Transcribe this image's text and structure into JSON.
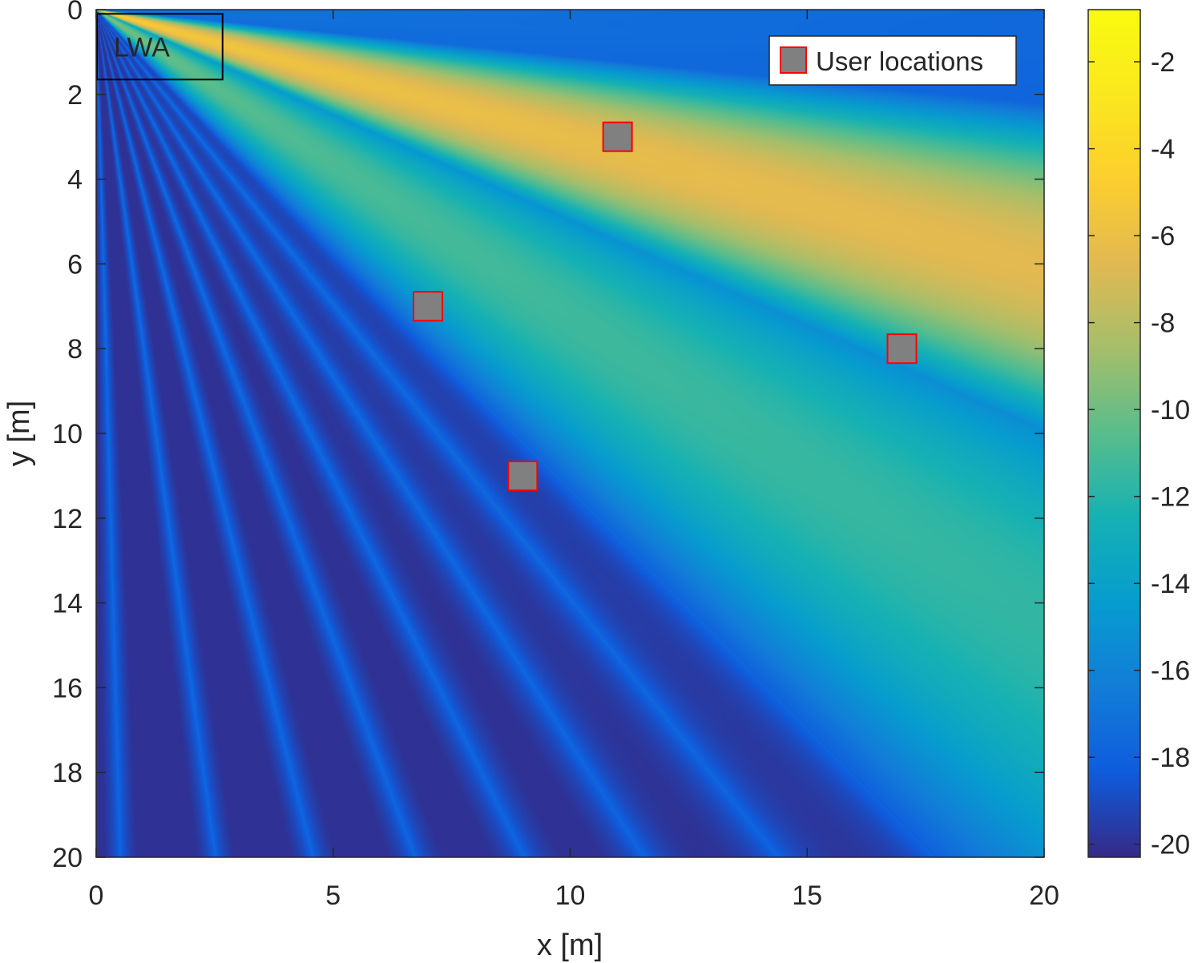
{
  "chart_data": {
    "type": "heatmap",
    "xlabel": "x [m]",
    "ylabel": "y [m]",
    "xlim": [
      0,
      20
    ],
    "ylim": [
      0,
      20
    ],
    "y_direction": "reversed",
    "xticks": [
      0,
      5,
      10,
      15,
      20
    ],
    "yticks": [
      0,
      2,
      4,
      6,
      8,
      10,
      12,
      14,
      16,
      18,
      20
    ],
    "colormap": "parula",
    "colorbar": {
      "clim": [
        -20.3,
        -0.8
      ],
      "ticks": [
        -2,
        -4,
        -6,
        -8,
        -10,
        -12,
        -14,
        -16,
        -18,
        -20
      ],
      "tick_labels": [
        "-2",
        "-4",
        "-6",
        "-8",
        "-10",
        "-12",
        "-14",
        "-16",
        "-18",
        "-20"
      ]
    },
    "field": {
      "source": [
        0,
        0
      ],
      "beams": [
        {
          "direction_deg": 17,
          "peak_level": -5,
          "width_deg": 4.5
        },
        {
          "direction_deg": 36,
          "peak_level": -10,
          "width_deg": 7
        }
      ],
      "background_level": -17,
      "min_level": -20
    },
    "annotation": {
      "text": "LWA",
      "box_x": [
        0,
        2.65
      ],
      "box_y": [
        0.1,
        1.65
      ]
    },
    "legend": {
      "location": "top-right",
      "entries": [
        "User locations"
      ]
    },
    "series": [
      {
        "name": "User locations",
        "marker": "square",
        "face_color": "#808080",
        "edge_color": "#ff0000",
        "points": [
          {
            "x": 11,
            "y": 3
          },
          {
            "x": 7,
            "y": 7
          },
          {
            "x": 17,
            "y": 8
          },
          {
            "x": 9,
            "y": 11
          }
        ]
      }
    ]
  }
}
